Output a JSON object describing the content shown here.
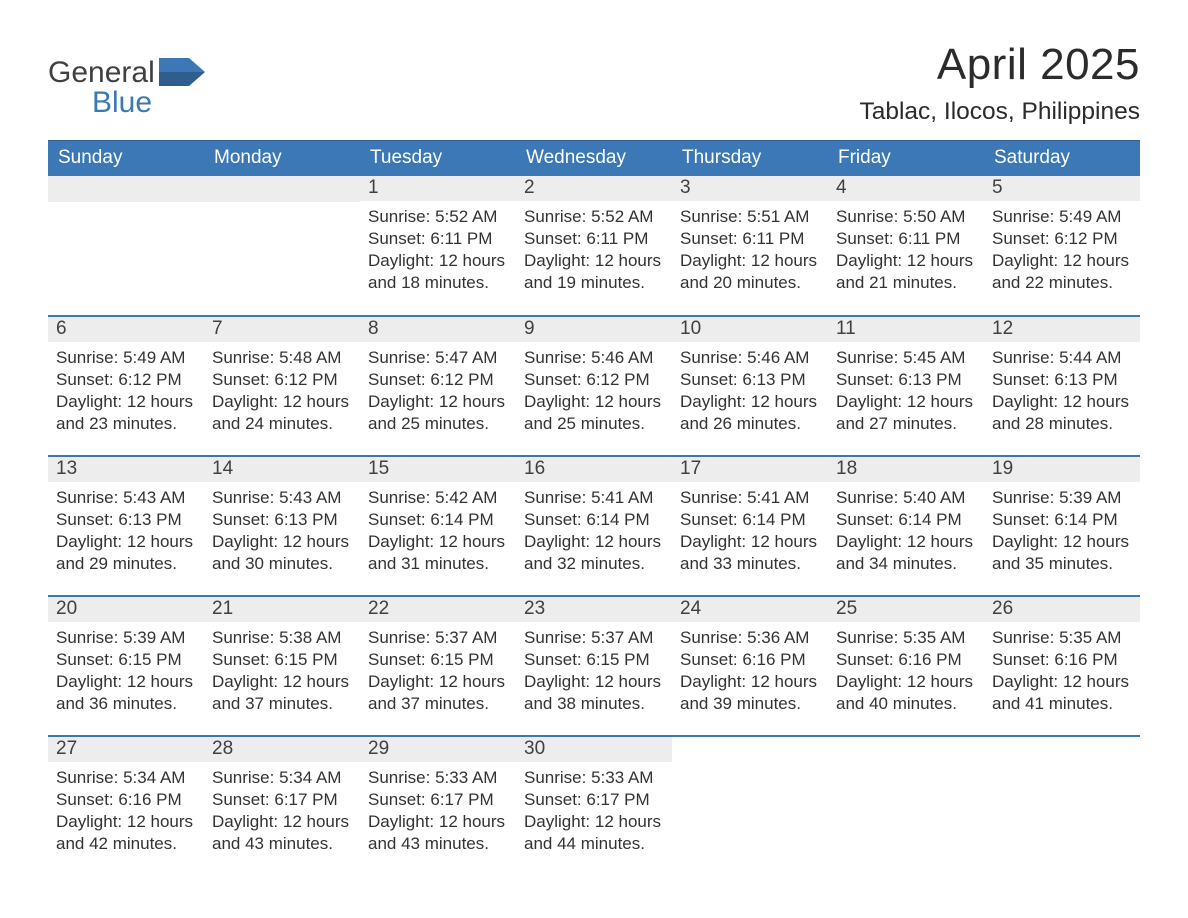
{
  "brand": {
    "general": "General",
    "blue": "Blue"
  },
  "title": "April 2025",
  "location": "Tablac, Ilocos, Philippines",
  "colors": {
    "header_bg": "#3b78b5",
    "header_text": "#ffffff",
    "daynum_bg": "#ededed",
    "row_border": "#3b78b5",
    "text": "#333333",
    "brand_gray": "#404040",
    "brand_blue": "#3b78b5",
    "page_bg": "#ffffff"
  },
  "typography": {
    "title_fontsize": 44,
    "location_fontsize": 24.5,
    "weekday_fontsize": 19,
    "daynum_fontsize": 19,
    "detail_fontsize": 17
  },
  "weekdays": [
    "Sunday",
    "Monday",
    "Tuesday",
    "Wednesday",
    "Thursday",
    "Friday",
    "Saturday"
  ],
  "structure": {
    "type": "calendar-table",
    "columns": 7,
    "rows": 5,
    "first_weekday_index": 2,
    "days_in_month": 30
  },
  "days": [
    {
      "n": 1,
      "sunrise": "5:52 AM",
      "sunset": "6:11 PM",
      "daylight": "12 hours and 18 minutes."
    },
    {
      "n": 2,
      "sunrise": "5:52 AM",
      "sunset": "6:11 PM",
      "daylight": "12 hours and 19 minutes."
    },
    {
      "n": 3,
      "sunrise": "5:51 AM",
      "sunset": "6:11 PM",
      "daylight": "12 hours and 20 minutes."
    },
    {
      "n": 4,
      "sunrise": "5:50 AM",
      "sunset": "6:11 PM",
      "daylight": "12 hours and 21 minutes."
    },
    {
      "n": 5,
      "sunrise": "5:49 AM",
      "sunset": "6:12 PM",
      "daylight": "12 hours and 22 minutes."
    },
    {
      "n": 6,
      "sunrise": "5:49 AM",
      "sunset": "6:12 PM",
      "daylight": "12 hours and 23 minutes."
    },
    {
      "n": 7,
      "sunrise": "5:48 AM",
      "sunset": "6:12 PM",
      "daylight": "12 hours and 24 minutes."
    },
    {
      "n": 8,
      "sunrise": "5:47 AM",
      "sunset": "6:12 PM",
      "daylight": "12 hours and 25 minutes."
    },
    {
      "n": 9,
      "sunrise": "5:46 AM",
      "sunset": "6:12 PM",
      "daylight": "12 hours and 25 minutes."
    },
    {
      "n": 10,
      "sunrise": "5:46 AM",
      "sunset": "6:13 PM",
      "daylight": "12 hours and 26 minutes."
    },
    {
      "n": 11,
      "sunrise": "5:45 AM",
      "sunset": "6:13 PM",
      "daylight": "12 hours and 27 minutes."
    },
    {
      "n": 12,
      "sunrise": "5:44 AM",
      "sunset": "6:13 PM",
      "daylight": "12 hours and 28 minutes."
    },
    {
      "n": 13,
      "sunrise": "5:43 AM",
      "sunset": "6:13 PM",
      "daylight": "12 hours and 29 minutes."
    },
    {
      "n": 14,
      "sunrise": "5:43 AM",
      "sunset": "6:13 PM",
      "daylight": "12 hours and 30 minutes."
    },
    {
      "n": 15,
      "sunrise": "5:42 AM",
      "sunset": "6:14 PM",
      "daylight": "12 hours and 31 minutes."
    },
    {
      "n": 16,
      "sunrise": "5:41 AM",
      "sunset": "6:14 PM",
      "daylight": "12 hours and 32 minutes."
    },
    {
      "n": 17,
      "sunrise": "5:41 AM",
      "sunset": "6:14 PM",
      "daylight": "12 hours and 33 minutes."
    },
    {
      "n": 18,
      "sunrise": "5:40 AM",
      "sunset": "6:14 PM",
      "daylight": "12 hours and 34 minutes."
    },
    {
      "n": 19,
      "sunrise": "5:39 AM",
      "sunset": "6:14 PM",
      "daylight": "12 hours and 35 minutes."
    },
    {
      "n": 20,
      "sunrise": "5:39 AM",
      "sunset": "6:15 PM",
      "daylight": "12 hours and 36 minutes."
    },
    {
      "n": 21,
      "sunrise": "5:38 AM",
      "sunset": "6:15 PM",
      "daylight": "12 hours and 37 minutes."
    },
    {
      "n": 22,
      "sunrise": "5:37 AM",
      "sunset": "6:15 PM",
      "daylight": "12 hours and 37 minutes."
    },
    {
      "n": 23,
      "sunrise": "5:37 AM",
      "sunset": "6:15 PM",
      "daylight": "12 hours and 38 minutes."
    },
    {
      "n": 24,
      "sunrise": "5:36 AM",
      "sunset": "6:16 PM",
      "daylight": "12 hours and 39 minutes."
    },
    {
      "n": 25,
      "sunrise": "5:35 AM",
      "sunset": "6:16 PM",
      "daylight": "12 hours and 40 minutes."
    },
    {
      "n": 26,
      "sunrise": "5:35 AM",
      "sunset": "6:16 PM",
      "daylight": "12 hours and 41 minutes."
    },
    {
      "n": 27,
      "sunrise": "5:34 AM",
      "sunset": "6:16 PM",
      "daylight": "12 hours and 42 minutes."
    },
    {
      "n": 28,
      "sunrise": "5:34 AM",
      "sunset": "6:17 PM",
      "daylight": "12 hours and 43 minutes."
    },
    {
      "n": 29,
      "sunrise": "5:33 AM",
      "sunset": "6:17 PM",
      "daylight": "12 hours and 43 minutes."
    },
    {
      "n": 30,
      "sunrise": "5:33 AM",
      "sunset": "6:17 PM",
      "daylight": "12 hours and 44 minutes."
    }
  ],
  "labels": {
    "sunrise": "Sunrise:",
    "sunset": "Sunset:",
    "daylight": "Daylight:"
  }
}
